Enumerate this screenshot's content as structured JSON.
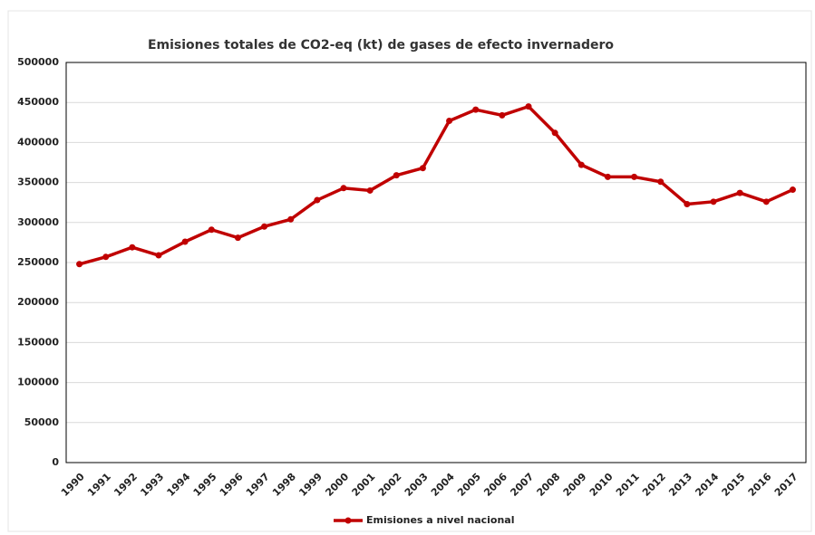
{
  "chart_data": {
    "type": "line",
    "title": "Emisiones totales de CO2-eq (kt) de gases de efecto invernadero",
    "categories": [
      "1990",
      "1991",
      "1992",
      "1993",
      "1994",
      "1995",
      "1996",
      "1997",
      "1998",
      "1999",
      "2000",
      "2001",
      "2002",
      "2003",
      "2004",
      "2005",
      "2006",
      "2007",
      "2008",
      "2009",
      "2010",
      "2011",
      "2012",
      "2013",
      "2014",
      "2015",
      "2016",
      "2017"
    ],
    "series": [
      {
        "name": "Emisiones a nivel nacional",
        "color": "#c00000",
        "values": [
          248000,
          257000,
          269000,
          259000,
          276000,
          291000,
          281000,
          295000,
          304000,
          328000,
          343000,
          340000,
          359000,
          368000,
          427000,
          441000,
          434000,
          445000,
          412000,
          372000,
          357000,
          357000,
          351000,
          323000,
          326000,
          337000,
          326000,
          341000
        ]
      }
    ],
    "ylim": [
      0,
      500000
    ],
    "yticks": [
      0,
      50000,
      100000,
      150000,
      200000,
      250000,
      300000,
      350000,
      400000,
      450000,
      500000
    ],
    "grid": true,
    "legend": "bottom"
  }
}
